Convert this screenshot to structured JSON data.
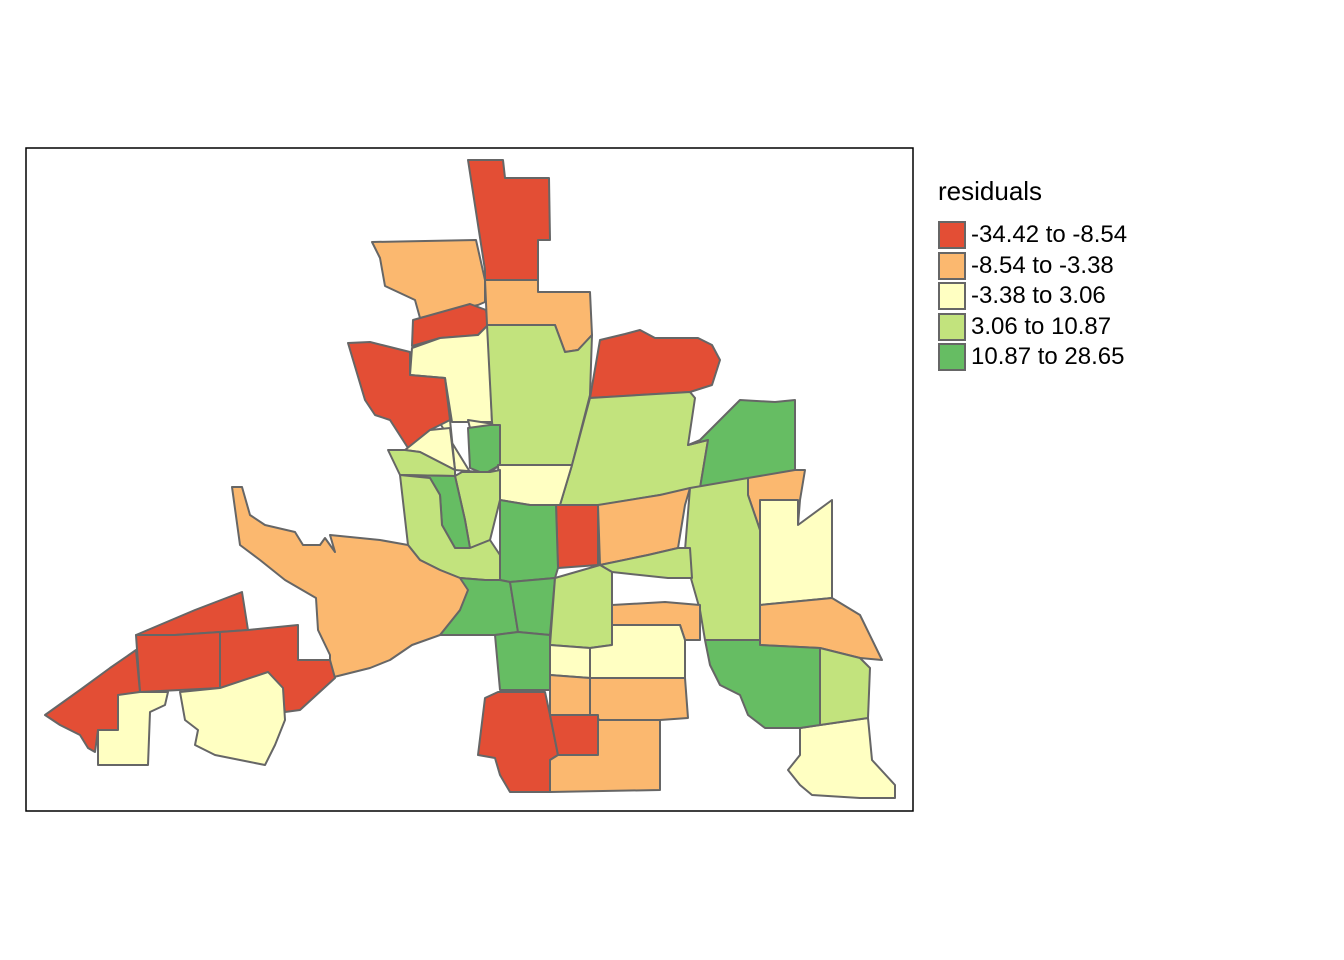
{
  "legend": {
    "title": "residuals",
    "classes": [
      {
        "label": "-34.42 to -8.54",
        "color": "#e34e35"
      },
      {
        "label": "-8.54 to -3.38",
        "color": "#fbb86f"
      },
      {
        "label": "-3.38 to 3.06",
        "color": "#ffffc2"
      },
      {
        "label": "3.06 to 10.87",
        "color": "#c2e37d"
      },
      {
        "label": "10.87 to 28.65",
        "color": "#66bd63"
      }
    ]
  },
  "colors": {
    "outline": "#666666",
    "frame": "#000000",
    "background": "#ffffff"
  },
  "map": {
    "tract_classes": [
      0,
      1,
      0,
      1,
      2,
      2,
      3,
      0,
      0,
      2,
      3,
      4,
      3,
      2,
      4,
      3,
      1,
      4,
      0,
      1,
      3,
      4,
      3,
      3,
      4,
      4,
      3,
      1,
      2,
      1,
      1,
      2,
      0,
      2,
      0,
      0,
      0,
      0,
      2,
      2,
      1,
      1,
      0,
      1,
      2,
      3
    ]
  }
}
